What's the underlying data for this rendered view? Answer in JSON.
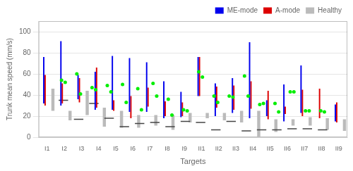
{
  "chart_data": {
    "type": "bar",
    "xlabel": "Targets",
    "ylabel": "Trunk mean speed (mm/s)",
    "categories": [
      "I1",
      "I2",
      "I3",
      "I4",
      "I5",
      "I6",
      "I7",
      "I8",
      "I9",
      "II1",
      "II2",
      "II3",
      "II4",
      "II5",
      "II6",
      "II7",
      "II8",
      "II9"
    ],
    "series": [
      {
        "name": "ME-mode",
        "type": "range",
        "color": "#0000EE",
        "low": [
          32,
          30,
          36,
          26,
          26,
          24,
          24,
          18,
          19,
          39,
          20,
          23,
          18,
          20,
          15,
          23,
          23,
          15
        ],
        "high": [
          76,
          91,
          59,
          62,
          77,
          75,
          71,
          53,
          43,
          76,
          51,
          56,
          90,
          35,
          50,
          68,
          23,
          31
        ]
      },
      {
        "type": "scatter",
        "marker": "circle",
        "color": "#00EE00",
        "values": [
          54,
          60,
          47,
          49,
          50,
          46,
          51,
          36,
          26,
          62,
          39,
          39,
          58,
          31,
          32,
          43,
          25,
          25
        ]
      },
      {
        "name": "A-mode",
        "type": "range",
        "color": "#DD0000",
        "low": [
          30,
          32,
          33,
          28,
          25,
          18,
          29,
          20,
          20,
          39,
          28,
          26,
          27,
          17,
          22,
          20,
          18,
          14
        ],
        "high": [
          59,
          51,
          56,
          66,
          35,
          39,
          47,
          34,
          33,
          76,
          48,
          49,
          53,
          44,
          29,
          45,
          46,
          33
        ]
      },
      {
        "type": "scatter",
        "marker": "circle",
        "color": "#00EE00",
        "values": [
          52,
          41,
          45,
          43,
          33,
          26,
          39,
          21,
          25,
          57,
          33,
          38,
          39,
          32,
          24,
          43,
          25,
          24
        ]
      },
      {
        "name": "Healthy",
        "type": "box",
        "color": "#BBBBBB",
        "low": [
          25,
          16,
          21,
          10,
          9,
          9,
          11,
          7,
          14,
          18,
          16,
          14,
          0,
          5,
          11,
          11,
          7,
          6
        ],
        "high": [
          46,
          25,
          44,
          28,
          25,
          21,
          21,
          21,
          23,
          23,
          23,
          25,
          25,
          17,
          17,
          19,
          18,
          17
        ]
      },
      {
        "type": "scatter",
        "marker": "line",
        "color": "#444444",
        "values": [
          35,
          17,
          32,
          18,
          10,
          13,
          14,
          10,
          15,
          14,
          7,
          15,
          6,
          7,
          7,
          8,
          8,
          7
        ]
      }
    ],
    "ylim": [
      0,
      110
    ],
    "yticks": [
      0,
      20,
      40,
      60,
      80,
      100
    ],
    "grid": "y",
    "legend": "upper right"
  }
}
